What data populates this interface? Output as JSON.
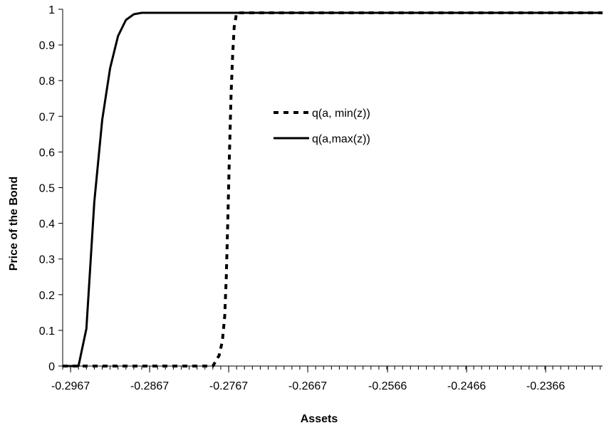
{
  "chart_data": {
    "type": "line",
    "title": "",
    "xlabel": "Assets",
    "ylabel": "Price of the Bond",
    "xlim": [
      -0.2977,
      -0.2294
    ],
    "ylim": [
      0,
      1
    ],
    "x_tick_values": [
      -0.2967,
      -0.2867,
      -0.2767,
      -0.2667,
      -0.2566,
      -0.2466,
      -0.2366
    ],
    "x_tick_labels": [
      "-0.2967",
      "-0.2867",
      "-0.2767",
      "-0.2667",
      "-0.2566",
      "-0.2466",
      "-0.2366"
    ],
    "y_tick_values": [
      0,
      0.1,
      0.2,
      0.3,
      0.4,
      0.5,
      0.6,
      0.7,
      0.8,
      0.9,
      1
    ],
    "y_tick_labels": [
      "0",
      "0.1",
      "0.2",
      "0.3",
      "0.4",
      "0.5",
      "0.6",
      "0.7",
      "0.8",
      "0.9",
      "1"
    ],
    "minor_tick_step": 0.001,
    "grid": false,
    "legend_position": "center",
    "series": [
      {
        "name": "q(a, min(z))",
        "style": "dashed",
        "color": "#000000",
        "x": [
          -0.2977,
          -0.2967,
          -0.2947,
          -0.2927,
          -0.2907,
          -0.2887,
          -0.2867,
          -0.2847,
          -0.2827,
          -0.2807,
          -0.2787,
          -0.2779,
          -0.2775,
          -0.2772,
          -0.277,
          -0.2768,
          -0.2766,
          -0.2764,
          -0.2762,
          -0.276,
          -0.2757,
          -0.2294
        ],
        "y": [
          0,
          0,
          0,
          0,
          0,
          0,
          0,
          0,
          0,
          0,
          0,
          0.03,
          0.07,
          0.14,
          0.25,
          0.42,
          0.6,
          0.76,
          0.87,
          0.95,
          0.99,
          0.99
        ]
      },
      {
        "name": "q(a,max(z))",
        "style": "solid",
        "color": "#000000",
        "x": [
          -0.2977,
          -0.2957,
          -0.2947,
          -0.2937,
          -0.2927,
          -0.2917,
          -0.2907,
          -0.2897,
          -0.2887,
          -0.2877,
          -0.2867,
          -0.2857,
          -0.2847,
          -0.2827,
          -0.2294
        ],
        "y": [
          0,
          0,
          0.105,
          0.46,
          0.69,
          0.835,
          0.925,
          0.97,
          0.986,
          0.99,
          0.99,
          0.99,
          0.99,
          0.99,
          0.99
        ]
      }
    ]
  }
}
